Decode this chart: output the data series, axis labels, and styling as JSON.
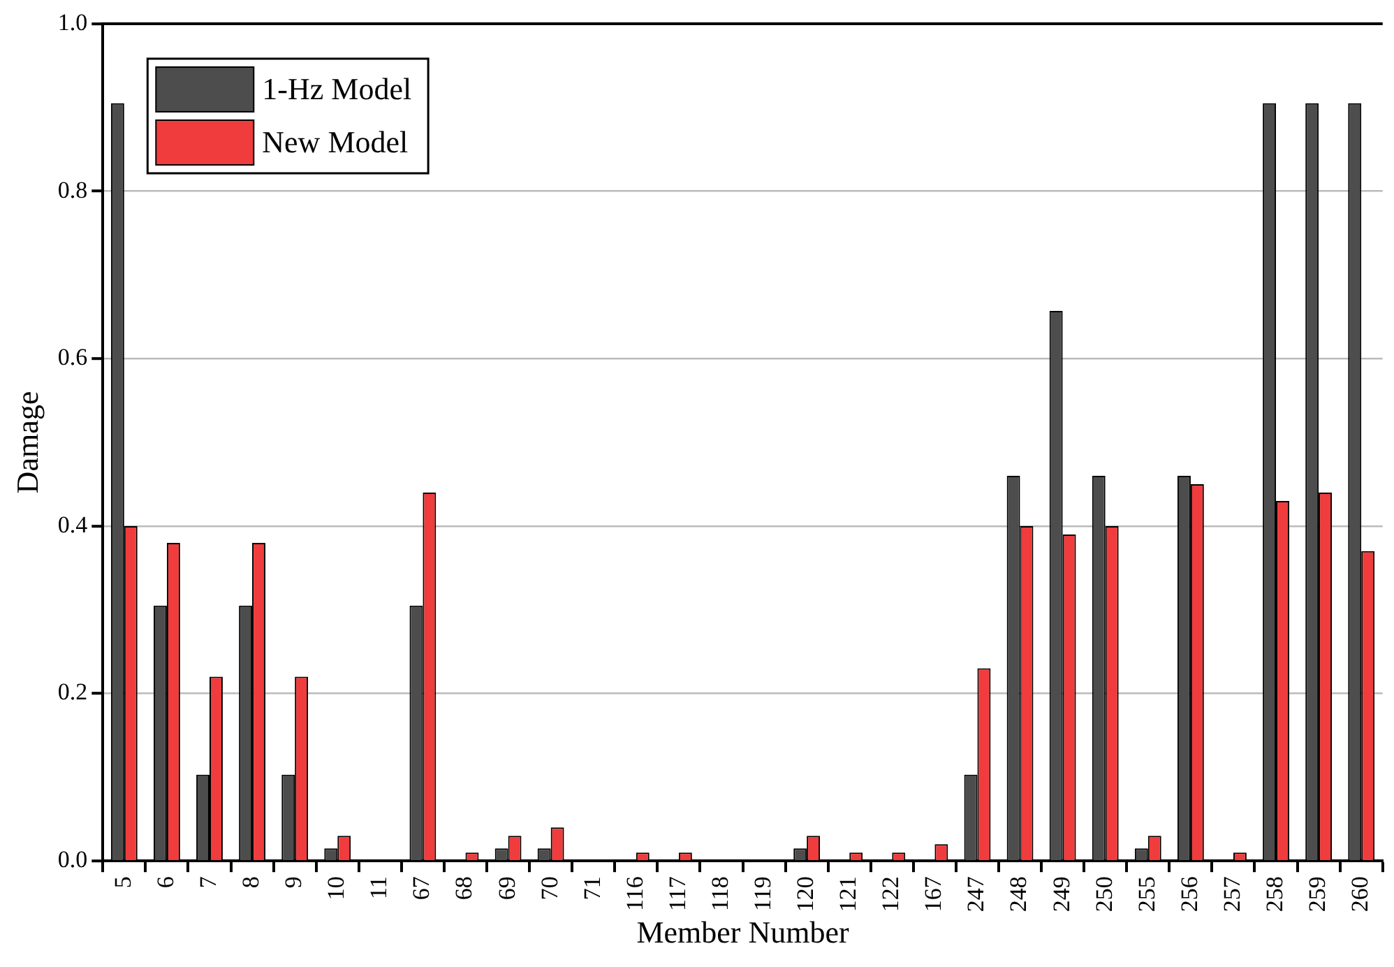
{
  "chart_data": {
    "type": "bar",
    "xlabel": "Member Number",
    "ylabel": "Damage",
    "categories": [
      "5",
      "6",
      "7",
      "8",
      "9",
      "10",
      "11",
      "67",
      "68",
      "69",
      "70",
      "71",
      "116",
      "117",
      "118",
      "119",
      "120",
      "121",
      "122",
      "167",
      "247",
      "248",
      "249",
      "250",
      "255",
      "256",
      "257",
      "258",
      "259",
      "260"
    ],
    "series": [
      {
        "name": "1-Hz Model",
        "color": "#4d4d4d",
        "values": [
          0.905,
          0.305,
          0.103,
          0.305,
          0.103,
          0.015,
          0,
          0.305,
          0,
          0.015,
          0.015,
          0,
          0,
          0,
          0,
          0,
          0.015,
          0,
          0,
          0,
          0.103,
          0.46,
          0.657,
          0.46,
          0.015,
          0.46,
          0,
          0.905,
          0.905,
          0.905
        ]
      },
      {
        "name": "New Model",
        "color": "#f03c3c",
        "values": [
          0.4,
          0.38,
          0.22,
          0.38,
          0.22,
          0.03,
          0,
          0.44,
          0.01,
          0.03,
          0.04,
          0,
          0.01,
          0.01,
          0,
          0,
          0.03,
          0.01,
          0.01,
          0.02,
          0.23,
          0.4,
          0.39,
          0.4,
          0.03,
          0.45,
          0.01,
          0.43,
          0.44,
          0.37
        ]
      }
    ],
    "ylim": [
      0,
      1
    ],
    "yticks": [
      {
        "value": 0,
        "label": "0.0"
      },
      {
        "value": 0.2,
        "label": "0.2"
      },
      {
        "value": 0.4,
        "label": "0.4"
      },
      {
        "value": 0.6,
        "label": "0.6"
      },
      {
        "value": 0.8,
        "label": "0.8"
      },
      {
        "value": 1,
        "label": "1.0"
      }
    ],
    "grid": "y",
    "legend": "top left"
  }
}
